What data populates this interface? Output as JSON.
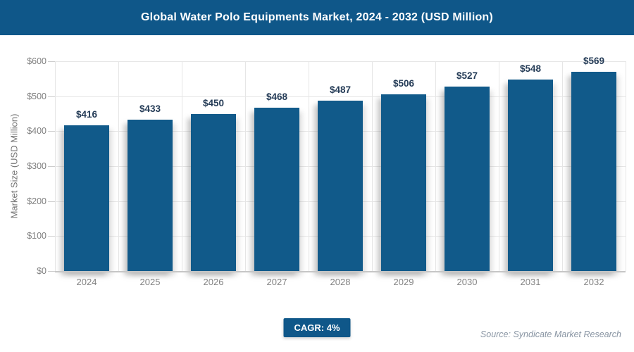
{
  "header": {
    "title": "Global Water Polo Equipments Market, 2024 - 2032 (USD Million)"
  },
  "chart_data": {
    "type": "bar",
    "title": "Global Water Polo Equipments Market, 2024 - 2032 (USD Million)",
    "categories": [
      "2024",
      "2025",
      "2026",
      "2027",
      "2028",
      "2029",
      "2030",
      "2031",
      "2032"
    ],
    "values": [
      416,
      433,
      450,
      468,
      487,
      506,
      527,
      548,
      569
    ],
    "value_labels": [
      "$416",
      "$433",
      "$450",
      "$468",
      "$487",
      "$506",
      "$527",
      "$548",
      "$569"
    ],
    "xlabel": "",
    "ylabel": "Market Size (USD Million)",
    "ylim": [
      0,
      600
    ],
    "yticks": [
      0,
      100,
      200,
      300,
      400,
      500,
      600
    ],
    "ytick_labels": [
      "$0",
      "$100",
      "$200",
      "$300",
      "$400",
      "$500",
      "$600"
    ],
    "grid": "horizontal and vertical, light gray",
    "legend": "none"
  },
  "footer": {
    "cagr_label": "CAGR: 4%",
    "source": "Source: Syndicate Market Research"
  },
  "colors": {
    "header_bg": "#0f5789",
    "bar": "#115a8a",
    "value_label": "#253c57",
    "axis_text": "#7f7f7f",
    "gridline": "#e6e6e6",
    "axis_line": "#c6c6c6",
    "badge_bg": "#0f5789",
    "source_text": "#8995a3"
  }
}
